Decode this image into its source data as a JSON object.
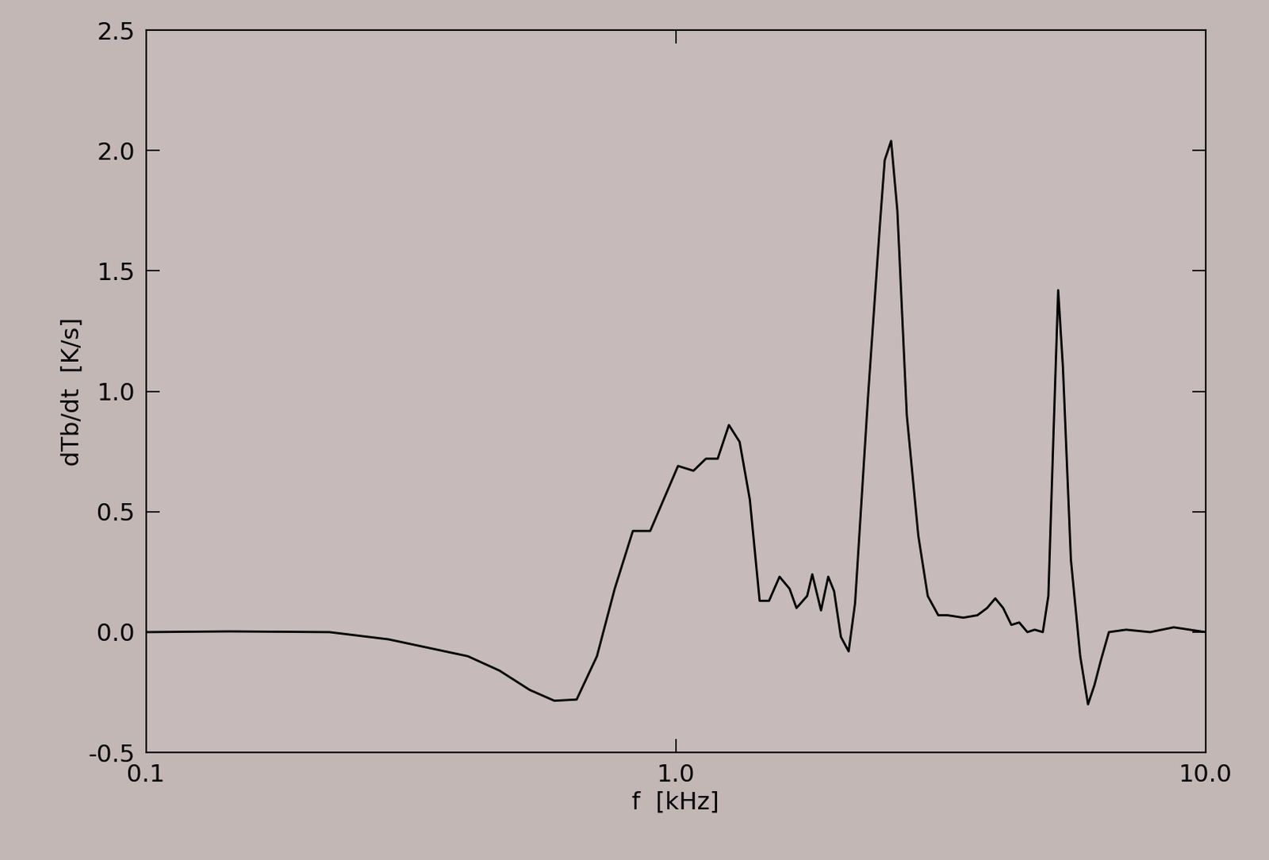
{
  "chart_data": {
    "type": "line",
    "x_label": "f  [kHz]",
    "y_label": "dTb/dt  [K/s]",
    "x": [
      0.1,
      0.144,
      0.222,
      0.287,
      0.405,
      0.465,
      0.53,
      0.59,
      0.65,
      0.71,
      0.767,
      0.83,
      0.895,
      1.01,
      1.08,
      1.14,
      1.2,
      1.26,
      1.32,
      1.38,
      1.44,
      1.5,
      1.57,
      1.64,
      1.69,
      1.77,
      1.81,
      1.88,
      1.94,
      1.99,
      2.05,
      2.12,
      2.18,
      2.31,
      2.43,
      2.48,
      2.55,
      2.62,
      2.73,
      2.87,
      2.99,
      3.13,
      3.26,
      3.49,
      3.71,
      3.87,
      4.01,
      4.15,
      4.3,
      4.45,
      4.61,
      4.76,
      4.93,
      5.05,
      5.16,
      5.27,
      5.38,
      5.57,
      5.8,
      6.0,
      6.17,
      6.34,
      6.57,
      7.08,
      7.86,
      8.71,
      10.0
    ],
    "series": [
      {
        "name": "dTb/dt",
        "color": "#000000",
        "values": [
          0.0,
          0.003,
          0.0,
          -0.03,
          -0.1,
          -0.16,
          -0.24,
          -0.285,
          -0.28,
          -0.1,
          0.18,
          0.42,
          0.42,
          0.69,
          0.67,
          0.72,
          0.72,
          0.86,
          0.79,
          0.55,
          0.13,
          0.13,
          0.23,
          0.18,
          0.1,
          0.15,
          0.24,
          0.09,
          0.23,
          0.17,
          -0.02,
          -0.08,
          0.12,
          1.0,
          1.7,
          1.96,
          2.04,
          1.75,
          0.9,
          0.4,
          0.15,
          0.07,
          0.07,
          0.06,
          0.07,
          0.1,
          0.14,
          0.1,
          0.03,
          0.04,
          0.0,
          0.01,
          0.0,
          0.15,
          0.8,
          1.42,
          1.1,
          0.3,
          -0.1,
          -0.3,
          -0.22,
          -0.12,
          0.0,
          0.01,
          0.0,
          0.02,
          0.0
        ]
      }
    ],
    "log": "x",
    "xlim": [
      0.1,
      10.0
    ],
    "xticks": [
      0.1,
      1.0,
      10.0
    ],
    "ylim": [
      -0.5,
      2.5
    ],
    "yticks": [
      -0.5,
      0.0,
      0.5,
      1.0,
      1.5,
      2.0,
      2.5
    ],
    "grid": false
  }
}
